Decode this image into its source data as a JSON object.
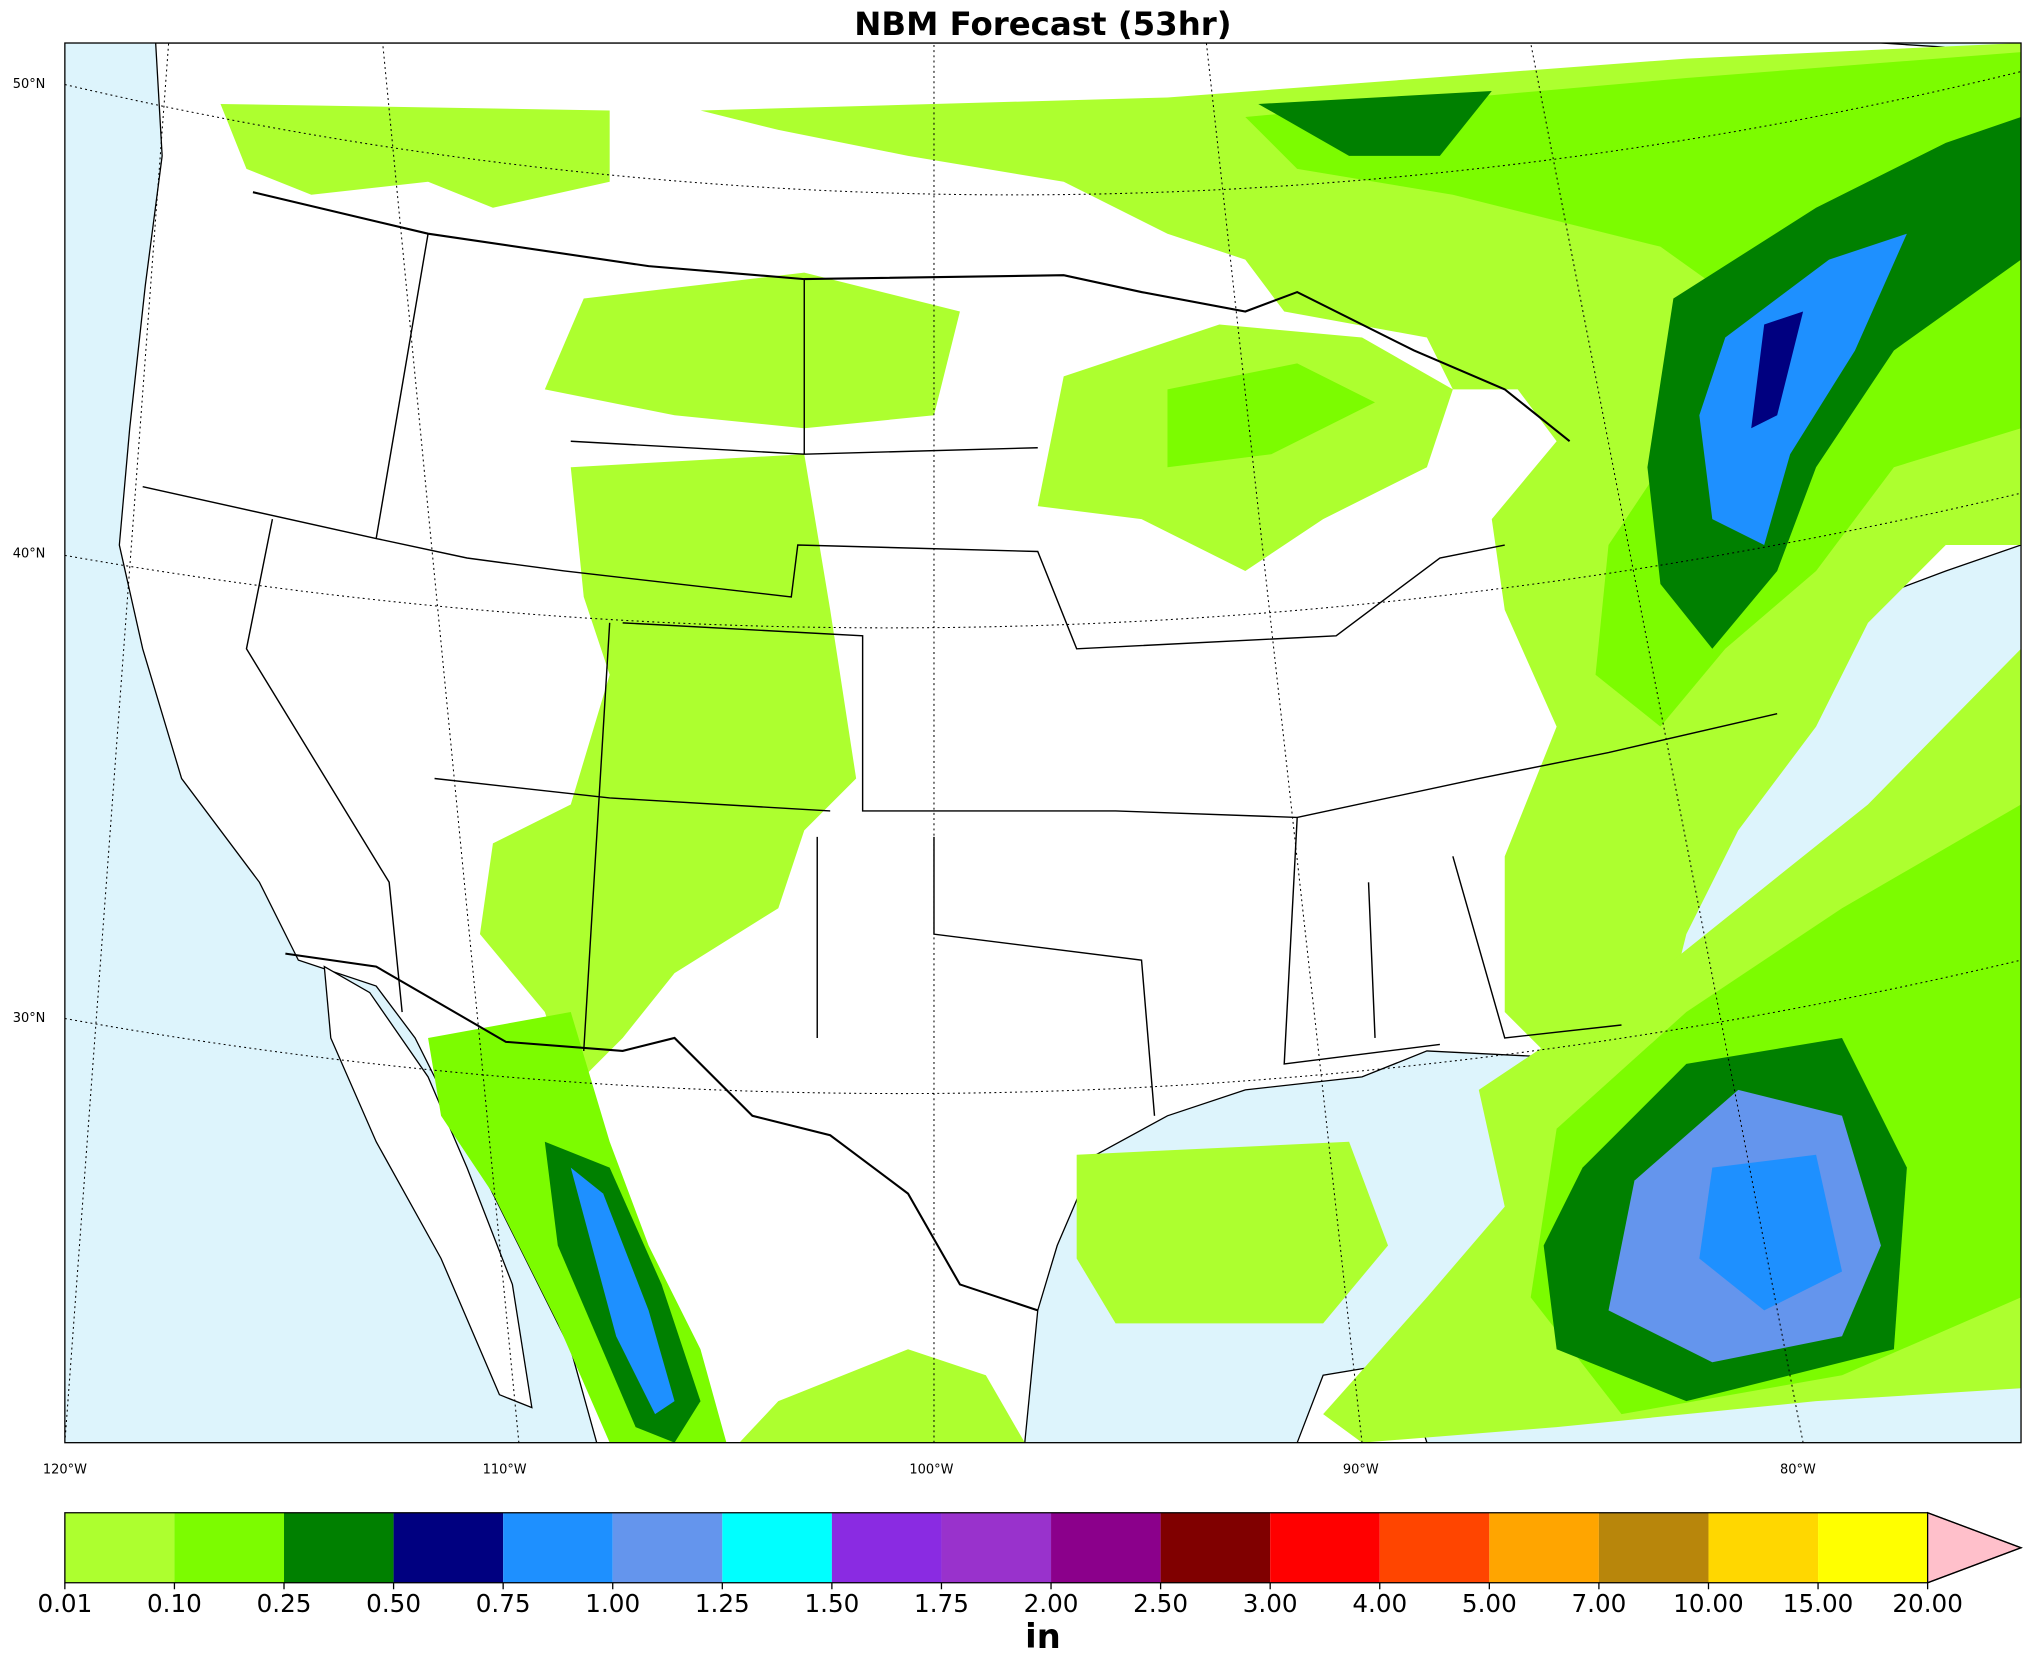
{
  "title": "NBM Forecast (53hr)",
  "map": {
    "lat_labels": [
      "50°N",
      "40°N",
      "30°N"
    ],
    "lon_labels": [
      "120°W",
      "110°W",
      "100°W",
      "90°W",
      "80°W"
    ]
  },
  "colorbar": {
    "unit": "in",
    "ticks": [
      {
        "value": 0.01,
        "label": "0.01"
      },
      {
        "value": 0.1,
        "label": "0.10"
      },
      {
        "value": 0.25,
        "label": "0.25"
      },
      {
        "value": 0.5,
        "label": "0.50"
      },
      {
        "value": 0.75,
        "label": "0.75"
      },
      {
        "value": 1,
        "label": "1.00"
      },
      {
        "value": 1.25,
        "label": "1.25"
      },
      {
        "value": 1.5,
        "label": "1.50"
      },
      {
        "value": 1.75,
        "label": "1.75"
      },
      {
        "value": 2,
        "label": "2.00"
      },
      {
        "value": 2.5,
        "label": "2.50"
      },
      {
        "value": 3,
        "label": "3.00"
      },
      {
        "value": 4,
        "label": "4.00"
      },
      {
        "value": 5,
        "label": "5.00"
      },
      {
        "value": 7,
        "label": "7.00"
      },
      {
        "value": 10,
        "label": "10.00"
      },
      {
        "value": 15,
        "label": "15.00"
      },
      {
        "value": 20,
        "label": "20.00"
      }
    ],
    "colors": [
      "#adff2f",
      "#7cfc00",
      "#008000",
      "#000080",
      "#1e90ff",
      "#6495ed",
      "#00ffff",
      "#8a2be2",
      "#9932cc",
      "#8b008b",
      "#800000",
      "#ff0000",
      "#ff4500",
      "#ffa500",
      "#b8860b",
      "#ffd700",
      "#ffff00"
    ],
    "extend_color": "#ffc0cb"
  }
}
